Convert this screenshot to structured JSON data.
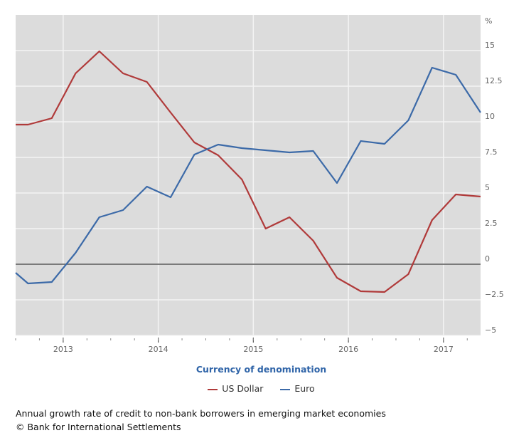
{
  "chart_data": {
    "type": "line",
    "title": "Currency of denomination",
    "caption": "Annual growth rate of credit to non-bank borrowers in emerging market economies",
    "source": "© Bank for International Settlements",
    "ylabel": "%",
    "ylim": [
      -5,
      17.5
    ],
    "xlim": [
      2012.5,
      2017.39
    ],
    "yticks": [
      -5,
      -2.5,
      0,
      2.5,
      5,
      7.5,
      10,
      12.5,
      15
    ],
    "ytick_labels": [
      "−5",
      "−2.5",
      "0",
      "2.5",
      "5",
      "7.5",
      "10",
      "12.5",
      "15"
    ],
    "xticks": [
      2013,
      2014,
      2015,
      2016,
      2017
    ],
    "xtick_labels": [
      "2013",
      "2014",
      "2015",
      "2016",
      "2017"
    ],
    "reference_line": 0,
    "grid": true,
    "legend_position": "bottom",
    "x": [
      2012.5,
      2012.63,
      2012.88,
      2013.13,
      2013.38,
      2013.63,
      2013.88,
      2014.13,
      2014.38,
      2014.63,
      2014.88,
      2015.13,
      2015.38,
      2015.63,
      2015.88,
      2016.13,
      2016.38,
      2016.63,
      2016.88,
      2017.13,
      2017.39
    ],
    "series": [
      {
        "name": "US Dollar",
        "color": "#b03a3a",
        "values": [
          9.8,
          9.8,
          10.25,
          13.4,
          14.95,
          13.4,
          12.8,
          10.65,
          8.55,
          7.65,
          5.95,
          2.5,
          3.3,
          1.65,
          -0.95,
          -1.9,
          -1.95,
          -0.7,
          3.1,
          4.9,
          4.75
        ]
      },
      {
        "name": "Euro",
        "color": "#3c6aa8",
        "values": [
          -0.6,
          -1.35,
          -1.25,
          0.8,
          3.3,
          3.8,
          5.45,
          4.7,
          7.7,
          8.4,
          8.15,
          8.0,
          7.85,
          7.95,
          5.7,
          8.65,
          8.45,
          10.1,
          13.8,
          13.3,
          10.65
        ]
      }
    ]
  }
}
